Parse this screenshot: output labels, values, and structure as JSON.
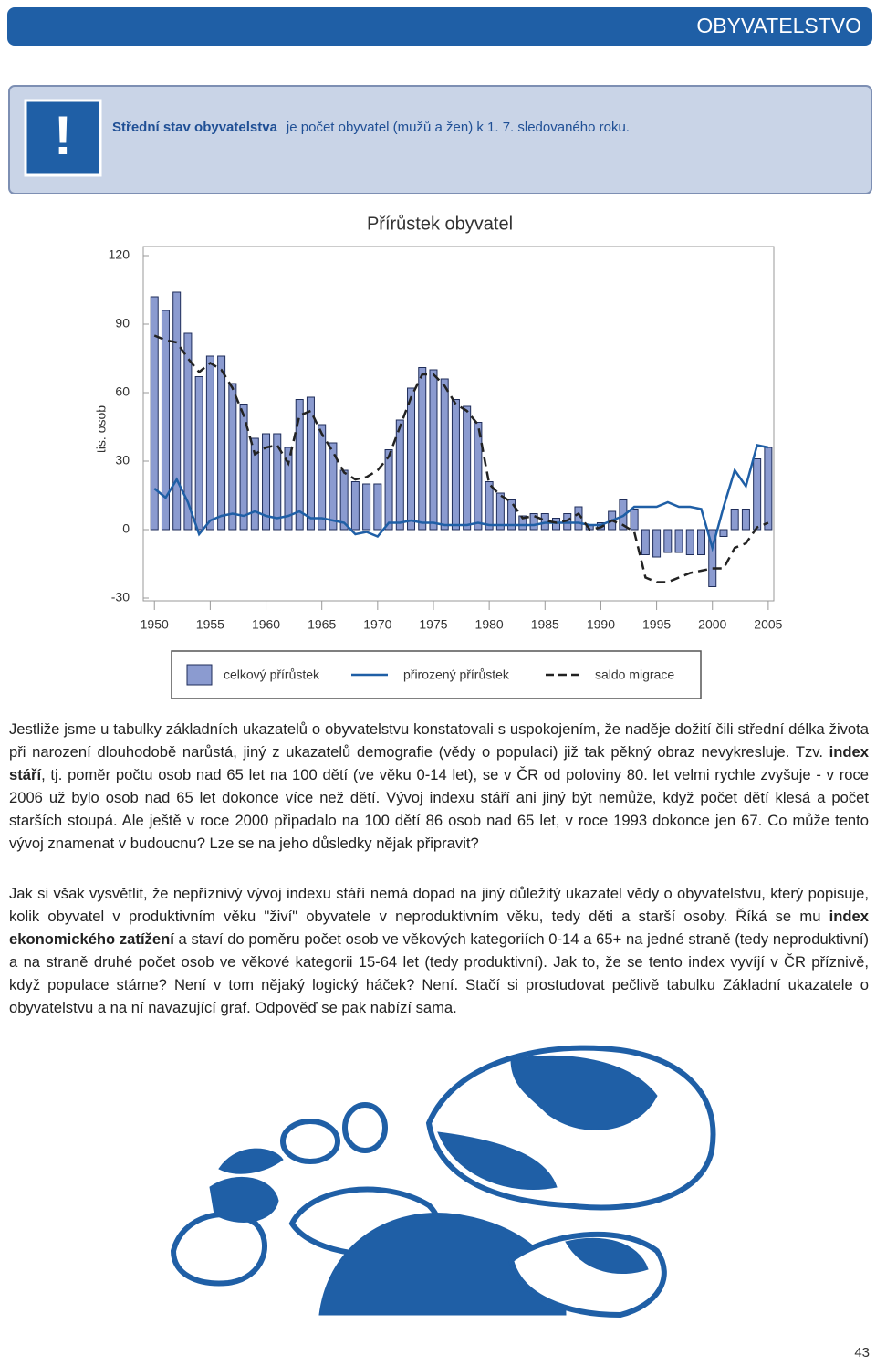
{
  "header": {
    "title": "OBYVATELSTVO"
  },
  "info_box": {
    "icon": "!",
    "term": "Střední stav obyvatelstva",
    "definition": "je počet obyvatel (mužů a žen) k 1. 7. sledovaného roku."
  },
  "chart_data": {
    "type": "bar",
    "title": "Přírůstek obyvatel",
    "y_label": "tis. osob",
    "x": [
      1950,
      1951,
      1952,
      1953,
      1954,
      1955,
      1956,
      1957,
      1958,
      1959,
      1960,
      1961,
      1962,
      1963,
      1964,
      1965,
      1966,
      1967,
      1968,
      1969,
      1970,
      1971,
      1972,
      1973,
      1974,
      1975,
      1976,
      1977,
      1978,
      1979,
      1980,
      1981,
      1982,
      1983,
      1984,
      1985,
      1986,
      1987,
      1988,
      1989,
      1990,
      1991,
      1992,
      1993,
      1994,
      1995,
      1996,
      1997,
      1998,
      1999,
      2000,
      2001,
      2002,
      2003,
      2004,
      2005
    ],
    "xlim": [
      1949,
      2005.5
    ],
    "xticks": [
      1950,
      1955,
      1960,
      1965,
      1970,
      1975,
      1980,
      1985,
      1990,
      1995,
      2000,
      2005
    ],
    "ylim": [
      -30,
      120
    ],
    "yticks": [
      -30,
      0,
      30,
      60,
      90,
      120
    ],
    "grid": false,
    "series": [
      {
        "name": "celkový přírůstek",
        "type": "bar",
        "color": "#8b9bd0",
        "values": [
          102,
          96,
          104,
          86,
          67,
          76,
          76,
          64,
          55,
          40,
          42,
          42,
          36,
          57,
          58,
          46,
          38,
          26,
          21,
          20,
          20,
          35,
          48,
          62,
          71,
          70,
          66,
          57,
          54,
          47,
          21,
          16,
          13,
          6,
          7,
          7,
          5,
          7,
          10,
          2,
          3,
          8,
          13,
          9,
          -11,
          -12,
          -10,
          -10,
          -11,
          -11,
          -25,
          -3,
          9,
          9,
          31,
          36
        ]
      },
      {
        "name": "přirozený přírůstek",
        "type": "line",
        "line_style": "solid",
        "color": "#1f5fa6",
        "values": [
          18,
          14,
          22,
          12,
          -2,
          4,
          6,
          7,
          6,
          8,
          6,
          5,
          6,
          8,
          5,
          5,
          4,
          3,
          -2,
          -1,
          -3,
          3,
          3,
          4,
          3,
          3,
          2,
          2,
          2,
          3,
          2,
          2,
          2,
          2,
          2,
          3,
          3,
          3,
          3,
          2,
          2,
          4,
          6,
          10,
          10,
          10,
          12,
          10,
          10,
          9,
          -8,
          10,
          26,
          19,
          37,
          36
        ]
      },
      {
        "name": "saldo migrace",
        "type": "line",
        "line_style": "dashed",
        "color": "#222222",
        "values": [
          85,
          83,
          82,
          75,
          69,
          73,
          70,
          62,
          50,
          33,
          36,
          37,
          29,
          50,
          52,
          42,
          34,
          25,
          22,
          23,
          26,
          32,
          45,
          58,
          68,
          68,
          63,
          55,
          52,
          46,
          20,
          15,
          12,
          5,
          6,
          4,
          3,
          4,
          7,
          0,
          1,
          4,
          2,
          -1,
          -21,
          -23,
          -23,
          -21,
          -19,
          -18,
          -17,
          -17,
          -8,
          -6,
          1,
          3
        ]
      }
    ]
  },
  "paragraphs": [
    [
      {
        "text": "Jestliže jsme u tabulky základních ukazatelů o obyvatelstvu konstatovali s uspokojením, že naděje dožití čili střední délka života při narození dlouhodobě narůstá, jiný z ukazatelů demografie (vědy o populaci) již tak pěkný obraz nevykresluje. Tzv. ",
        "bold": false
      },
      {
        "text": "index stáří",
        "bold": true
      },
      {
        "text": ", tj. poměr počtu osob nad 65 let na 100 dětí (ve věku 0-14 let), se v ČR od poloviny 80. let velmi rychle zvyšuje - v roce 2006 už bylo osob nad 65 let dokonce více než dětí. Vývoj indexu stáří ani jiný být nemůže, když počet dětí klesá a počet starších stoupá. Ale ještě v roce 2000 připadalo na 100 dětí 86 osob nad 65 let, v roce 1993 dokonce jen 67. Co může tento vývoj znamenat v budoucnu? Lze se na jeho důsledky nějak připravit?",
        "bold": false
      }
    ],
    [
      {
        "text": "Jak si však vysvětlit, že nepříznivý vývoj indexu stáří nemá dopad na jiný důležitý ukazatel vědy o obyvatelstvu, který popisuje, kolik obyvatel v produktivním věku \"živí\" obyvatele v neproduktivním věku, tedy děti a starší osoby. Říká se mu ",
        "bold": false
      },
      {
        "text": "index ekonomického zatížení",
        "bold": true
      },
      {
        "text": " a staví do poměru počet osob ve věkových kategoriích 0-14 a 65+ na jedné straně (tedy neproduktivní) a na straně druhé počet osob ve věkové kategorii 15-64 let (tedy produktivní). Jak to, že se tento index vyvíjí v ČR příznivě, když populace stárne? Není v tom nějaký logický háček? Není. Stačí si prostudovat pečlivě tabulku Základní ukazatele o obyvatelstvu a na ní navazující graf. Odpověď se pak nabízí sama.",
        "bold": false
      }
    ]
  ],
  "page_number": "43"
}
